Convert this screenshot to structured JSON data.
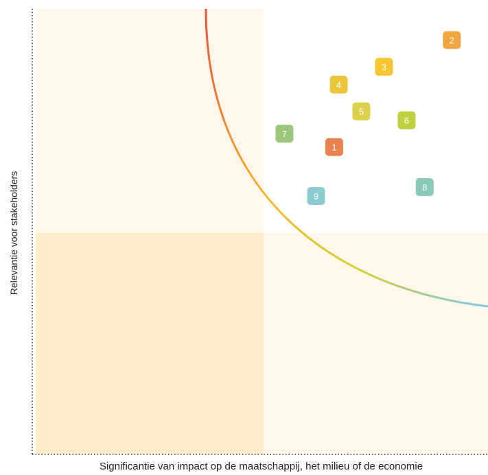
{
  "chart_data": {
    "type": "scatter",
    "title": "",
    "xlabel": "Significantie van impact op de maatschappij, het milieu of de economie",
    "ylabel": "Relevantie voor stakeholders",
    "xlim": [
      0,
      100
    ],
    "ylim": [
      0,
      100
    ],
    "grid": false,
    "points": [
      {
        "label": "1",
        "x": 66,
        "y": 69,
        "color": "#e8824f"
      },
      {
        "label": "2",
        "x": 92,
        "y": 93,
        "color": "#f2a640"
      },
      {
        "label": "3",
        "x": 77,
        "y": 87,
        "color": "#f5c431"
      },
      {
        "label": "4",
        "x": 67,
        "y": 83,
        "color": "#e9c53a"
      },
      {
        "label": "5",
        "x": 72,
        "y": 77,
        "color": "#dcd04a"
      },
      {
        "label": "6",
        "x": 82,
        "y": 75,
        "color": "#bfcf3c"
      },
      {
        "label": "7",
        "x": 55,
        "y": 72,
        "color": "#9bc77a"
      },
      {
        "label": "8",
        "x": 86,
        "y": 60,
        "color": "#89c9b8"
      },
      {
        "label": "9",
        "x": 62,
        "y": 58,
        "color": "#8ccbd0"
      }
    ]
  }
}
